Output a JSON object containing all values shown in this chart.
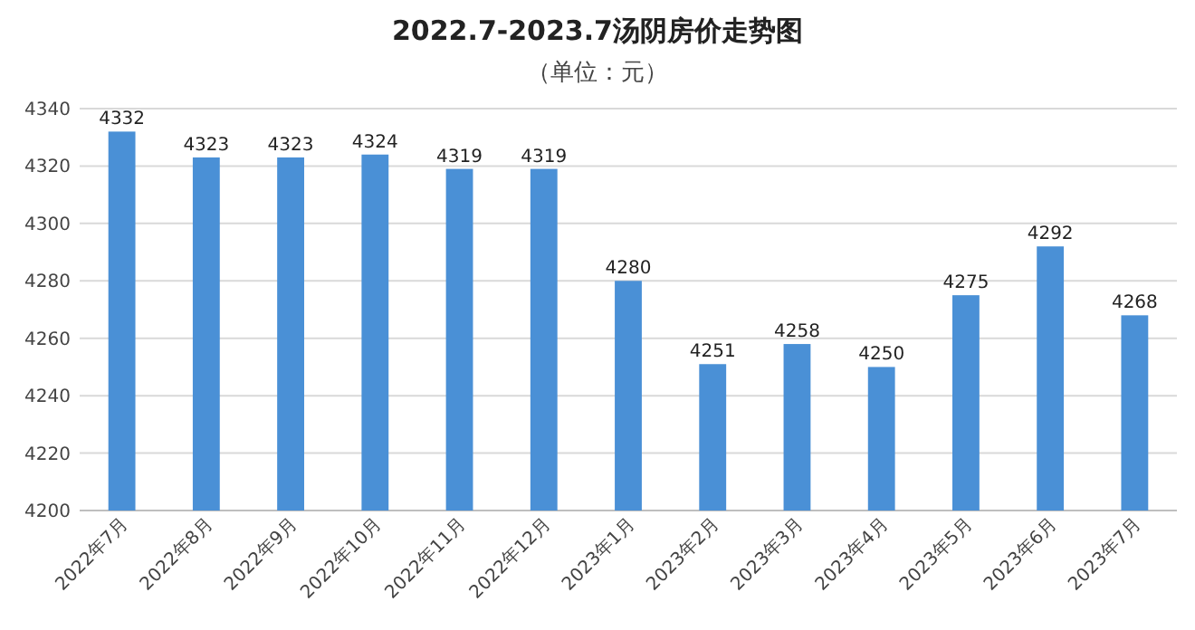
{
  "chart_data": {
    "type": "bar",
    "title": "2022.7-2023.7汤阴房价走势图",
    "subtitle": "（单位：元）",
    "categories": [
      "2022年7月",
      "2022年8月",
      "2022年9月",
      "2022年10月",
      "2022年11月",
      "2022年12月",
      "2023年1月",
      "2023年2月",
      "2023年3月",
      "2023年4月",
      "2023年5月",
      "2023年6月",
      "2023年7月"
    ],
    "values": [
      4332,
      4323,
      4323,
      4324,
      4319,
      4319,
      4280,
      4251,
      4258,
      4250,
      4275,
      4292,
      4268
    ],
    "color": "#4a90d6",
    "ylim": [
      4200,
      4340
    ],
    "yticks": [
      4200,
      4220,
      4240,
      4260,
      4280,
      4300,
      4320,
      4340
    ],
    "grid": "y",
    "data_labels": true
  }
}
